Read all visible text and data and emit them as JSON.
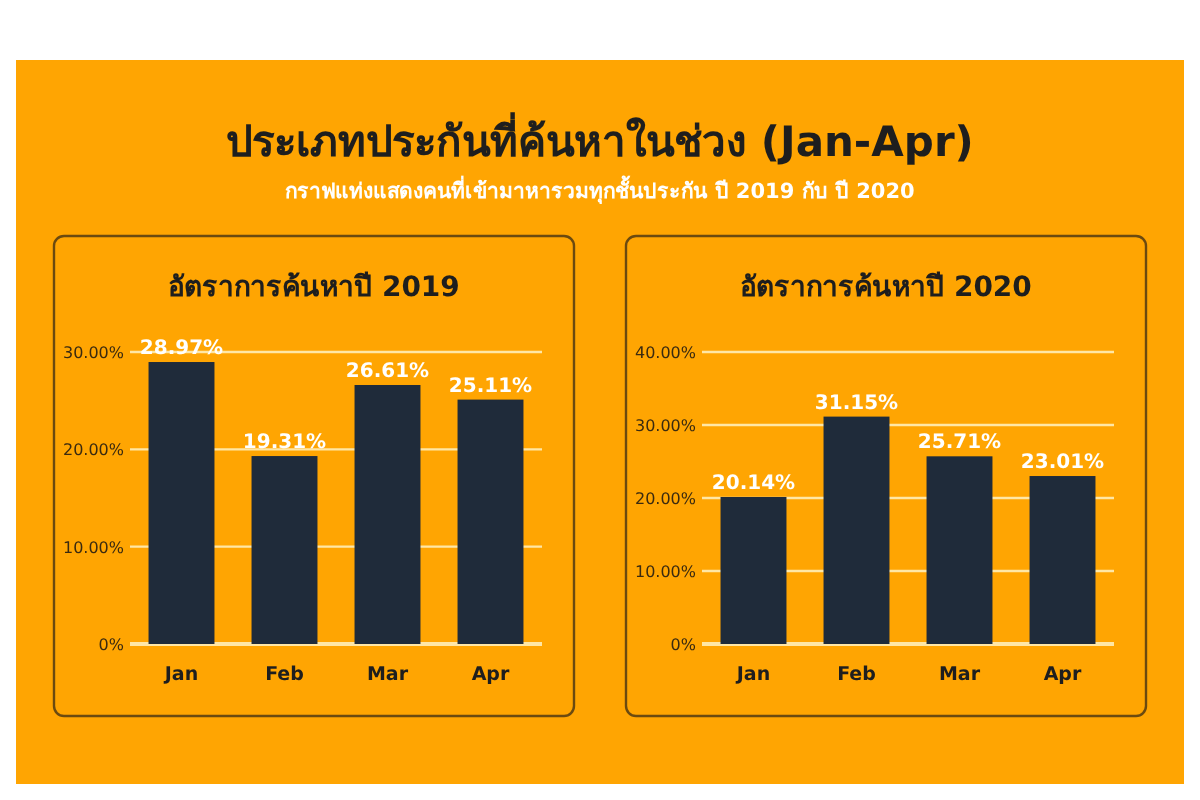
{
  "chart_data": [
    {
      "type": "other",
      "title": "ประเภทประกันที่ค้นหาในช่วง (Jan-Apr)",
      "subtitle": "กราฟแท่งแสดงคนที่เข้ามาหารวมทุกชั้นประกัน ปี 2019 กับ ปี 2020"
    },
    {
      "type": "bar",
      "title": "อัตราการค้นหาปี 2019",
      "categories": [
        "Jan",
        "Feb",
        "Mar",
        "Apr"
      ],
      "values": [
        28.97,
        19.31,
        26.61,
        25.11
      ],
      "value_labels": [
        "28.97%",
        "19.31%",
        "26.61%",
        "25.11%"
      ],
      "color": "#1f2b3a",
      "ylim": [
        0,
        30
      ],
      "yticks": [
        {
          "value": 0,
          "label": "0%"
        },
        {
          "value": 10,
          "label": "10.00%"
        },
        {
          "value": 20,
          "label": "20.00%"
        },
        {
          "value": 30,
          "label": "30.00%"
        }
      ],
      "grid": "y"
    },
    {
      "type": "bar",
      "title": "อัตราการค้นหาปี 2020",
      "categories": [
        "Jan",
        "Feb",
        "Mar",
        "Apr"
      ],
      "values": [
        20.14,
        31.15,
        25.71,
        23.01
      ],
      "value_labels": [
        "20.14%",
        "31.15%",
        "25.71%",
        "23.01%"
      ],
      "color": "#1f2b3a",
      "ylim": [
        0,
        40
      ],
      "yticks": [
        {
          "value": 0,
          "label": "0%"
        },
        {
          "value": 10,
          "label": "10.00%"
        },
        {
          "value": 20,
          "label": "20.00%"
        },
        {
          "value": 30,
          "label": "30.00%"
        },
        {
          "value": 40,
          "label": "40.00%"
        }
      ],
      "grid": "y"
    }
  ]
}
